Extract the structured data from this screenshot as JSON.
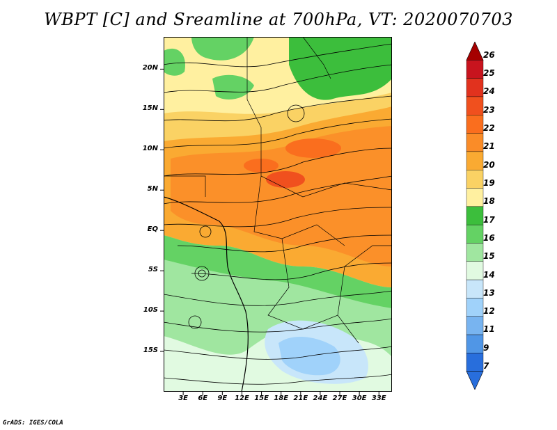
{
  "title": "WBPT [C] and Sreamline at 700hPa, VT: 2020070703",
  "credit": "GrADS: IGES/COLA",
  "map": {
    "lon_range": [
      0,
      35
    ],
    "lat_range": [
      -20,
      24
    ],
    "lat_ticks": [
      {
        "label": "20N",
        "value": 20
      },
      {
        "label": "15N",
        "value": 15
      },
      {
        "label": "10N",
        "value": 10
      },
      {
        "label": "5N",
        "value": 5
      },
      {
        "label": "EQ",
        "value": 0
      },
      {
        "label": "5S",
        "value": -5
      },
      {
        "label": "10S",
        "value": -10
      },
      {
        "label": "15S",
        "value": -15
      }
    ],
    "lon_ticks": [
      {
        "label": "3E",
        "value": 3
      },
      {
        "label": "6E",
        "value": 6
      },
      {
        "label": "9E",
        "value": 9
      },
      {
        "label": "12E",
        "value": 12
      },
      {
        "label": "15E",
        "value": 15
      },
      {
        "label": "18E",
        "value": 18
      },
      {
        "label": "21E",
        "value": 21
      },
      {
        "label": "24E",
        "value": 24
      },
      {
        "label": "27E",
        "value": 27
      },
      {
        "label": "30E",
        "value": 30
      },
      {
        "label": "33E",
        "value": 33
      }
    ]
  },
  "colorbar": {
    "levels": [
      "26",
      "25",
      "24",
      "23",
      "22",
      "21",
      "20",
      "19",
      "18",
      "17",
      "16",
      "15",
      "14",
      "13",
      "12",
      "11",
      "9",
      "7"
    ],
    "colors": [
      "#a50000",
      "#c8141e",
      "#e1321e",
      "#f0501e",
      "#fa6e1e",
      "#fa8c28",
      "#faaa32",
      "#fad264",
      "#fff0a0",
      "#3cbe3c",
      "#64d264",
      "#a0e6a0",
      "#e1fae1",
      "#c8e6fa",
      "#a0d2fa",
      "#78b4f0",
      "#5096e6",
      "#286edc"
    ]
  }
}
